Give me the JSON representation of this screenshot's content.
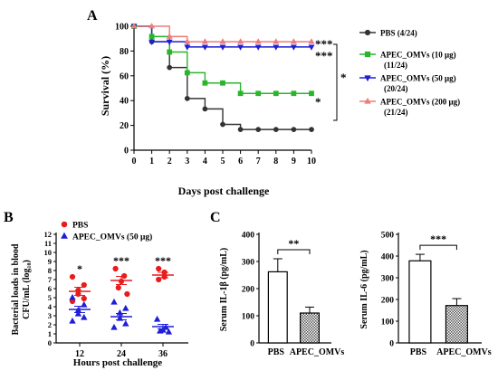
{
  "figure": {
    "panel_labels": {
      "A": "A",
      "B": "B",
      "C": "C"
    }
  },
  "chart_data": [
    {
      "panel": "A",
      "type": "line",
      "line_style": "step",
      "xlabel": "Days post challenge",
      "ylabel": "Survival (%)",
      "xlim": [
        0,
        10
      ],
      "ylim": [
        0,
        100
      ],
      "xticks": [
        "0",
        "1",
        "2",
        "3",
        "4",
        "5",
        "6",
        "7",
        "8",
        "9",
        "10"
      ],
      "yticks": [
        "0",
        "20",
        "40",
        "60",
        "80",
        "100"
      ],
      "grid": false,
      "legend_position": "right",
      "series": [
        {
          "name": "PBS (4/24)",
          "color": "#333333",
          "marker": "circle",
          "x": [
            0,
            1,
            2,
            3,
            4,
            5,
            6,
            7,
            8,
            9,
            10
          ],
          "y": [
            100,
            87.5,
            66.7,
            41.7,
            33.3,
            20.8,
            16.7,
            16.7,
            16.7,
            16.7,
            16.7
          ]
        },
        {
          "name": "APEC_OMVs (10 μg) (11/24)",
          "color": "#2bb52b",
          "marker": "square",
          "x": [
            0,
            1,
            2,
            3,
            4,
            5,
            6,
            7,
            8,
            9,
            10
          ],
          "y": [
            100,
            91.7,
            79.2,
            62.5,
            54.2,
            54.2,
            45.8,
            45.8,
            45.8,
            45.8,
            45.8
          ]
        },
        {
          "name": "APEC_OMVs (50 μg) (20/24)",
          "color": "#1f1fd6",
          "marker": "triangle-down",
          "x": [
            0,
            1,
            2,
            3,
            4,
            5,
            6,
            7,
            8,
            9,
            10
          ],
          "y": [
            100,
            87.5,
            87.5,
            83.3,
            83.3,
            83.3,
            83.3,
            83.3,
            83.3,
            83.3,
            83.3
          ]
        },
        {
          "name": "APEC_OMVs (200 μg) (21/24)",
          "color": "#f07a7a",
          "marker": "triangle-up",
          "x": [
            0,
            1,
            2,
            3,
            4,
            5,
            6,
            7,
            8,
            9,
            10
          ],
          "y": [
            100,
            100,
            91.7,
            87.5,
            87.5,
            87.5,
            87.5,
            87.5,
            87.5,
            87.5,
            87.5
          ]
        }
      ],
      "annotations": {
        "end_200": "***",
        "end_50": "***",
        "end_10": "*",
        "bracket": "*"
      }
    },
    {
      "panel": "B",
      "type": "scatter",
      "xlabel": "Hours post challenge",
      "ylabel": "Bacterial loads in blood CFU/mL (log₁₀)",
      "ylabel_lines": [
        "Bacterial loads in blood",
        "CFU/mL (log₁₀)"
      ],
      "categories": [
        "12",
        "24",
        "36"
      ],
      "ylim": [
        0,
        12
      ],
      "yticks": [
        "0",
        "1",
        "2",
        "3",
        "4",
        "5",
        "6",
        "7",
        "8",
        "9",
        "10",
        "11",
        "12"
      ],
      "grid": false,
      "legend_position": "top-left",
      "series": [
        {
          "name": "PBS",
          "color": "#e81c1c",
          "marker": "circle",
          "mean": [
            5.7,
            6.9,
            7.5
          ],
          "sem": [
            0.45,
            0.45,
            0.3
          ],
          "points": [
            [
              7.3,
              6.4,
              5.8,
              5.4,
              4.9,
              4.6
            ],
            [
              8.2,
              7.4,
              6.8,
              6.1,
              5.4
            ],
            [
              8.2,
              7.8,
              7.3,
              7.0
            ]
          ]
        },
        {
          "name": "APEC_OMVs (50 μg)",
          "color": "#1f1fd6",
          "marker": "triangle-up",
          "mean": [
            3.7,
            2.9,
            1.8
          ],
          "sem": [
            0.35,
            0.35,
            0.25
          ],
          "points": [
            [
              5.0,
              4.2,
              3.6,
              3.2,
              2.8,
              2.4
            ],
            [
              4.5,
              3.8,
              3.3,
              2.7,
              2.1,
              1.7
            ],
            [
              2.6,
              1.7,
              1.4,
              1.3,
              1.2
            ]
          ]
        }
      ],
      "significance": [
        "*",
        "***",
        "***"
      ]
    },
    {
      "panel": "C",
      "type": "bar",
      "ylabel": "Serum IL-1β (pg/mL)",
      "categories": [
        "PBS",
        "APEC_OMVs"
      ],
      "values": [
        262,
        110
      ],
      "errors": [
        48,
        22
      ],
      "ylim": [
        0,
        400
      ],
      "yticks": [
        "0",
        "100",
        "200",
        "300",
        "400"
      ],
      "significance": "**"
    },
    {
      "panel": "C",
      "type": "bar",
      "ylabel": "Serum IL-6 (pg/mL)",
      "categories": [
        "PBS",
        "APEC_OMVs"
      ],
      "values": [
        378,
        172
      ],
      "errors": [
        30,
        32
      ],
      "ylim": [
        0,
        500
      ],
      "yticks": [
        "0",
        "100",
        "200",
        "300",
        "400",
        "500"
      ],
      "significance": "***"
    }
  ]
}
